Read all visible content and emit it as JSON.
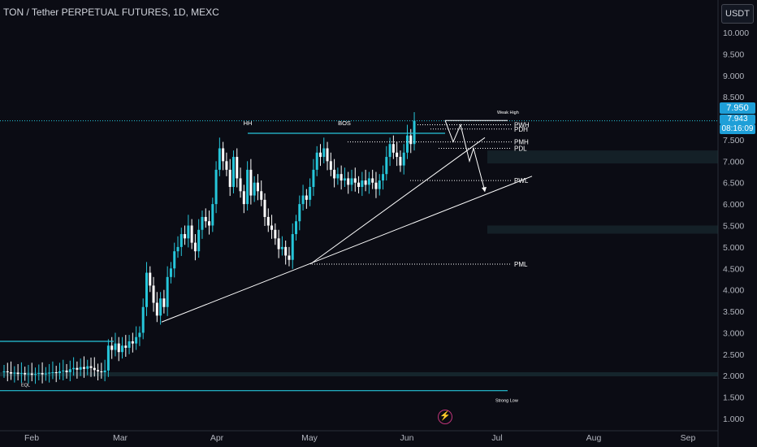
{
  "header": {
    "title": "TON / Tether PERPETUAL FUTURES, 1D, MEXC",
    "currency_button": "USDT"
  },
  "price_tags": {
    "high": "7.950",
    "current": "7.943",
    "timer": "08:16:09"
  },
  "icons": {
    "bolt": "lightning-bolt-icon"
  },
  "colors": {
    "bull": "#26c6da",
    "bear": "#ffffff",
    "level": "#26c6da",
    "background": "#0b0c14"
  },
  "chart_data": {
    "type": "candlestick",
    "y_axis": {
      "range": [
        0.75,
        10.35
      ],
      "ticks": [
        "10.000",
        "9.500",
        "9.000",
        "8.500",
        "8.000",
        "7.500",
        "7.000",
        "6.500",
        "6.000",
        "5.500",
        "5.000",
        "4.500",
        "4.000",
        "3.500",
        "3.000",
        "2.500",
        "2.000",
        "1.500",
        "1.000"
      ]
    },
    "x_axis": {
      "labels": [
        "Feb",
        "Mar",
        "Apr",
        "May",
        "Jun",
        "Jul",
        "Aug",
        "Sep"
      ]
    },
    "approx_closes": [
      2.1,
      2.08,
      2.05,
      2.07,
      2.04,
      2.06,
      2.03,
      2.05,
      2.02,
      2.04,
      2.06,
      2.03,
      2.05,
      2.07,
      2.08,
      2.06,
      2.1,
      2.12,
      2.08,
      2.15,
      2.18,
      2.14,
      2.2,
      2.16,
      2.22,
      2.18,
      2.13,
      2.1,
      2.08,
      2.12,
      2.7,
      2.6,
      2.75,
      2.55,
      2.7,
      2.65,
      2.8,
      2.75,
      2.9,
      3.0,
      3.6,
      4.4,
      4.1,
      3.7,
      3.4,
      3.8,
      3.6,
      4.3,
      4.5,
      4.9,
      5.0,
      5.3,
      5.2,
      5.5,
      5.1,
      4.9,
      5.4,
      5.7,
      5.6,
      5.5,
      6.0,
      6.8,
      7.3,
      7.0,
      6.8,
      6.4,
      7.1,
      6.6,
      6.3,
      6.0,
      6.8,
      6.2,
      6.5,
      6.3,
      6.1,
      5.7,
      5.5,
      5.4,
      5.2,
      4.95,
      5.0,
      4.8,
      4.7,
      5.3,
      5.6,
      6.0,
      6.2,
      6.1,
      6.4,
      6.8,
      7.2,
      7.1,
      7.3,
      7.0,
      6.8,
      6.6,
      6.7,
      6.55,
      6.6,
      6.45,
      6.6,
      6.5,
      6.4,
      6.55,
      6.45,
      6.6,
      6.5,
      6.35,
      6.55,
      6.7,
      7.1,
      7.4,
      7.2,
      7.1,
      6.9,
      7.2,
      7.6,
      7.4,
      7.943
    ],
    "levels": [
      {
        "label": "Weak High",
        "value": 7.95
      },
      {
        "label": "PWH",
        "value": 7.85
      },
      {
        "label": "PDH",
        "value": 7.75
      },
      {
        "label": "PMH",
        "value": 7.45
      },
      {
        "label": "PDL",
        "value": 7.3
      },
      {
        "label": "PWL",
        "value": 6.55
      },
      {
        "label": "PML",
        "value": 4.6
      },
      {
        "label": "HH",
        "value": 7.65
      },
      {
        "label": "BOS",
        "value": 7.65
      },
      {
        "label": "EQL",
        "value": 2.05
      },
      {
        "label": "Strong Low",
        "value": 1.65
      }
    ]
  }
}
